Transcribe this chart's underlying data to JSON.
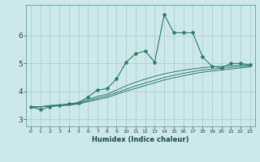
{
  "xlabel": "Humidex (Indice chaleur)",
  "ylabel": "",
  "background_color": "#cce8e8",
  "line_color": "#2e7d6e",
  "grid_color": "#aacccc",
  "xlim": [
    -0.5,
    23.5
  ],
  "ylim": [
    2.75,
    7.1
  ],
  "yticks": [
    3,
    4,
    5,
    6
  ],
  "xticks": [
    0,
    1,
    2,
    3,
    4,
    5,
    6,
    7,
    8,
    9,
    10,
    11,
    12,
    13,
    14,
    15,
    16,
    17,
    18,
    19,
    20,
    21,
    22,
    23
  ],
  "series1_x": [
    0,
    1,
    2,
    3,
    4,
    5,
    6,
    7,
    8,
    9,
    10,
    11,
    12,
    13,
    14,
    15,
    16,
    17,
    18,
    19,
    20,
    21,
    22,
    23
  ],
  "series1_y": [
    3.45,
    3.35,
    3.45,
    3.5,
    3.55,
    3.6,
    3.8,
    4.05,
    4.1,
    4.45,
    5.05,
    5.35,
    5.45,
    5.05,
    6.75,
    6.1,
    6.1,
    6.1,
    5.25,
    4.9,
    4.85,
    5.0,
    5.0,
    4.95
  ],
  "series2_x": [
    0,
    1,
    2,
    3,
    4,
    5,
    6,
    7,
    8,
    9,
    10,
    11,
    12,
    13,
    14,
    15,
    16,
    17,
    18,
    19,
    20,
    21,
    22,
    23
  ],
  "series2_y": [
    3.45,
    3.45,
    3.5,
    3.52,
    3.55,
    3.6,
    3.72,
    3.82,
    3.9,
    4.05,
    4.2,
    4.33,
    4.44,
    4.54,
    4.63,
    4.7,
    4.76,
    4.81,
    4.85,
    4.88,
    4.9,
    4.92,
    4.94,
    4.96
  ],
  "series3_x": [
    0,
    1,
    2,
    3,
    4,
    5,
    6,
    7,
    8,
    9,
    10,
    11,
    12,
    13,
    14,
    15,
    16,
    17,
    18,
    19,
    20,
    21,
    22,
    23
  ],
  "series3_y": [
    3.45,
    3.45,
    3.48,
    3.5,
    3.53,
    3.57,
    3.67,
    3.76,
    3.84,
    3.96,
    4.08,
    4.2,
    4.3,
    4.4,
    4.5,
    4.58,
    4.65,
    4.71,
    4.77,
    4.8,
    4.83,
    4.86,
    4.89,
    4.92
  ],
  "series4_x": [
    0,
    1,
    2,
    3,
    4,
    5,
    6,
    7,
    8,
    9,
    10,
    11,
    12,
    13,
    14,
    15,
    16,
    17,
    18,
    19,
    20,
    21,
    22,
    23
  ],
  "series4_y": [
    3.45,
    3.45,
    3.47,
    3.49,
    3.51,
    3.55,
    3.63,
    3.71,
    3.78,
    3.9,
    4.01,
    4.11,
    4.21,
    4.31,
    4.41,
    4.49,
    4.56,
    4.63,
    4.69,
    4.73,
    4.77,
    4.8,
    4.84,
    4.88
  ]
}
